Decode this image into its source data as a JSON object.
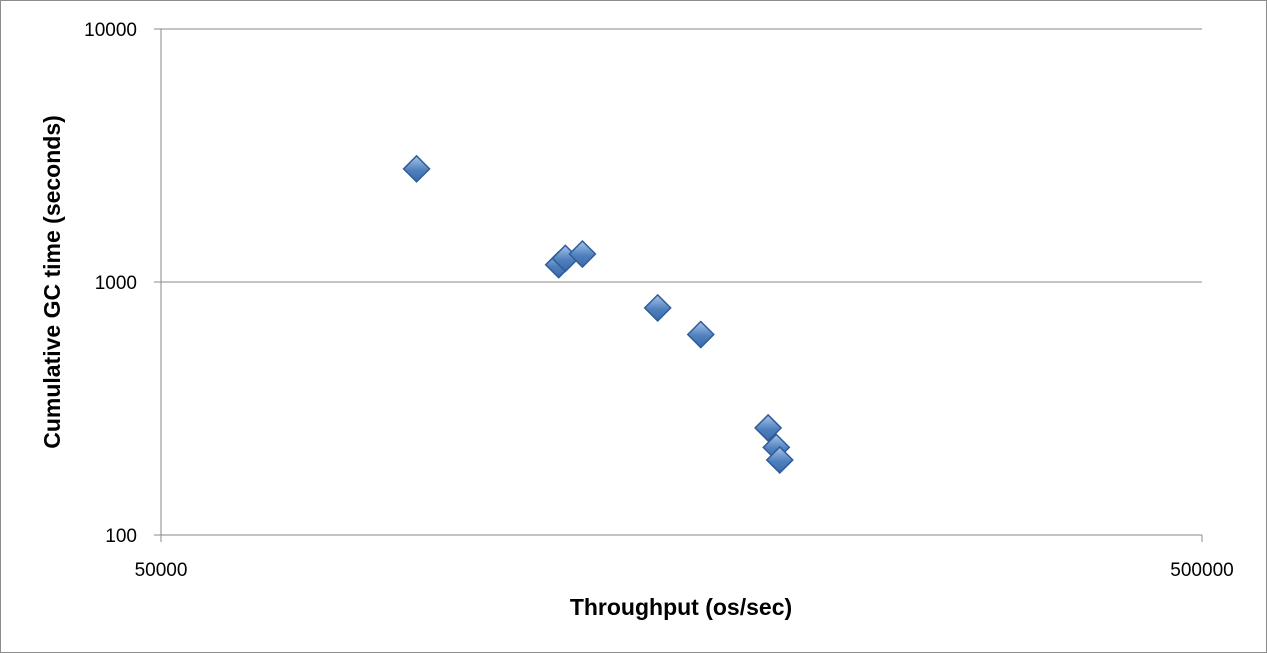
{
  "chart_data": {
    "type": "scatter",
    "title": "",
    "xlabel": "Throughput (os/sec)",
    "ylabel": "Cumulative GC time (seconds)",
    "x_scale": "log",
    "y_scale": "log",
    "xlim": [
      50000,
      500000
    ],
    "ylim": [
      100,
      10000
    ],
    "x_ticks": [
      "50000",
      "500000"
    ],
    "y_ticks": [
      "10000",
      "1000",
      "100"
    ],
    "grid": "horizontal",
    "legend": "none",
    "marker": "diamond",
    "marker_color": "#4f81bd",
    "series": [
      {
        "points": [
          {
            "x": 88000,
            "y": 2800
          },
          {
            "x": 120500,
            "y": 1170
          },
          {
            "x": 122300,
            "y": 1240
          },
          {
            "x": 127000,
            "y": 1290
          },
          {
            "x": 150000,
            "y": 790
          },
          {
            "x": 165000,
            "y": 620
          },
          {
            "x": 191500,
            "y": 265
          },
          {
            "x": 195000,
            "y": 222
          },
          {
            "x": 196500,
            "y": 198
          }
        ]
      }
    ]
  }
}
